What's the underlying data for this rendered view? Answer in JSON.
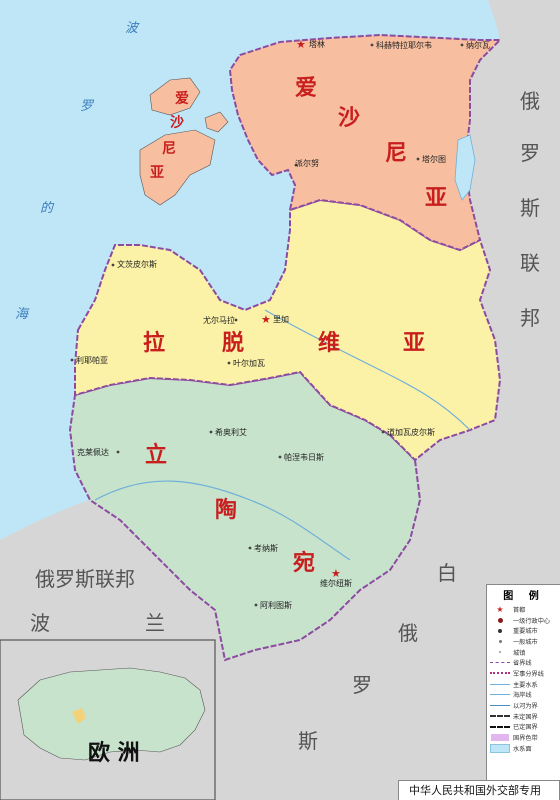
{
  "map": {
    "countries": {
      "estonia": [
        "爱",
        "沙",
        "尼",
        "亚"
      ],
      "estonia_islands": [
        "爱",
        "沙",
        "尼",
        "亚"
      ],
      "latvia": [
        "拉",
        "脱",
        "维",
        "亚"
      ],
      "lithuania": [
        "立",
        "陶",
        "宛"
      ],
      "russia_east": [
        "俄",
        "罗",
        "斯",
        "联",
        "邦"
      ],
      "russia_west": "俄罗斯联邦",
      "belarus": [
        "白",
        "俄",
        "罗",
        "斯"
      ],
      "poland": [
        "波",
        "兰"
      ]
    },
    "sea": [
      "波",
      "罗",
      "的",
      "海"
    ],
    "cities": {
      "tallinn": "塔林",
      "kohtla_jarve": "科赫特拉耶尔韦",
      "narva": "纳尔瓦",
      "parnu": "派尔努",
      "tartu": "塔尔图",
      "ventspils": "文茨皮尔斯",
      "jurmala": "尤尔马拉",
      "riga": "里加",
      "jelgava": "叶尔加瓦",
      "liepaja": "利耶帕亚",
      "daugavpils": "道加瓦皮尔斯",
      "siauliai": "希奥利艾",
      "panevezys": "帕涅韦日斯",
      "klaipeda": "克莱佩达",
      "kaunas": "考纳斯",
      "vilnius": "维尔纽斯",
      "alytus": "阿利图斯"
    },
    "inset_label": "欧 洲",
    "colors": {
      "water": "#bfe6f7",
      "estonia": "#f7bfa0",
      "latvia": "#fbf2a8",
      "lithuania": "#c7e3cc",
      "neighbor": "#d6d6d6",
      "border": "#8c4aa0",
      "label_red": "#c81e1e"
    }
  },
  "legend": {
    "title": "图 例",
    "items": [
      {
        "icon": "capital-star",
        "label": "首都"
      },
      {
        "icon": "admin-center-dot",
        "label": "一级行政中心"
      },
      {
        "icon": "major-city-dot",
        "label": "重要城市"
      },
      {
        "icon": "city-dot",
        "label": "一般城市"
      },
      {
        "icon": "town-dot",
        "label": "城镇"
      },
      {
        "icon": "province-line",
        "label": "省界线"
      },
      {
        "icon": "military-line",
        "label": "军事分界线"
      },
      {
        "icon": "main-river",
        "label": "主要水系"
      },
      {
        "icon": "coastline",
        "label": "海岸线"
      },
      {
        "icon": "river-boundary",
        "label": "以河为界"
      },
      {
        "icon": "undefined-boundary",
        "label": "未定国界"
      },
      {
        "icon": "defined-boundary",
        "label": "已定国界"
      },
      {
        "icon": "country-swatch",
        "label": "国界色带"
      },
      {
        "icon": "water-swatch",
        "label": "水系面"
      }
    ]
  },
  "footer": "中华人民共和国外交部专用"
}
